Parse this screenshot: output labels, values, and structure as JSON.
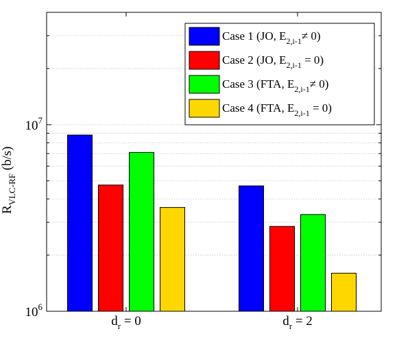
{
  "chart_data": {
    "type": "bar",
    "scale": "log",
    "ylim": [
      1000000,
      40000000
    ],
    "yticks": [
      {
        "value": 1000000,
        "base": "10",
        "exp": "6"
      },
      {
        "value": 10000000,
        "base": "10",
        "exp": "7"
      }
    ],
    "ylabel": {
      "main": "R",
      "sub": "VLC-RF",
      "unit": " (b/s)"
    },
    "categories": [
      {
        "main": "d",
        "sub": "r",
        "rest": " = 0"
      },
      {
        "main": "d",
        "sub": "r",
        "rest": " = 2"
      }
    ],
    "grid": true,
    "legend_position": "top-right",
    "series": [
      {
        "name": {
          "pre": "Case 1 (JO, E",
          "sub": "2,i-1",
          "post": "≠ 0)"
        },
        "color": "#0000ff",
        "values": [
          8800000,
          4700000
        ]
      },
      {
        "name": {
          "pre": "Case 2 (JO, E",
          "sub": "2,i-1",
          "post": " = 0)"
        },
        "color": "#ff0000",
        "values": [
          4750000,
          2850000
        ]
      },
      {
        "name": {
          "pre": "Case 3 (FTA, E",
          "sub": "2,i-1",
          "post": "≠ 0)"
        },
        "color": "#00ff00",
        "values": [
          7100000,
          3300000
        ]
      },
      {
        "name": {
          "pre": "Case 4 (FTA, E",
          "sub": "2,i-1",
          "post": " = 0)"
        },
        "color": "#ffd700",
        "values": [
          3600000,
          1600000
        ]
      }
    ]
  }
}
